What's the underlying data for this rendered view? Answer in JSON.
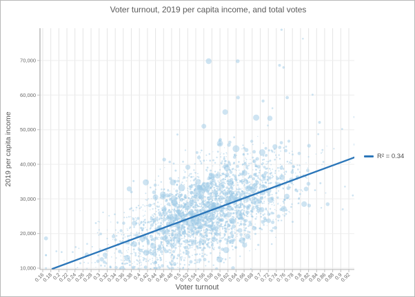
{
  "window": {
    "border_color": "#b7b7b7",
    "background": "#ffffff"
  },
  "chart_data": {
    "type": "scatter",
    "title": "Voter turnout, 2019 per capita income, and total votes",
    "xlabel": "Voter turnout",
    "ylabel": "2019 per capita income",
    "xlim": [
      0.15,
      0.94
    ],
    "ylim": [
      9500,
      79500
    ],
    "grid": true,
    "legend": {
      "label": "R² = 0.34",
      "position": "right-of-plot"
    },
    "x_ticks": [
      "0.16",
      "0.18",
      "0.2",
      "0.22",
      "0.24",
      "0.26",
      "0.28",
      "0.3",
      "0.32",
      "0.34",
      "0.36",
      "0.38",
      "0.4",
      "0.42",
      "0.44",
      "0.46",
      "0.48",
      "0.5",
      "0.52",
      "0.54",
      "0.56",
      "0.58",
      "0.6",
      "0.62",
      "0.64",
      "0.66",
      "0.68",
      "0.7",
      "0.72",
      "0.74",
      "0.76",
      "0.78",
      "0.8",
      "0.82",
      "0.84",
      "0.86",
      "0.88",
      "0.9",
      "0.92"
    ],
    "y_ticks": [
      "10,000",
      "20,000",
      "30,000",
      "40,000",
      "50,000",
      "60,000",
      "70,000"
    ],
    "trendline": {
      "x1": 0.184,
      "y1": 9800,
      "x2": 0.934,
      "y2": 42000,
      "r_squared": 0.34,
      "color": "#2b76b9",
      "width": 2.4
    },
    "points_style": {
      "fill": "#9ec9e6",
      "opacity": 0.5
    },
    "axis_style": {
      "y_axis_color": "#949494",
      "x_axis_color": "#b3b3b3",
      "grid_color_vertical": "#e4e4e4",
      "grid_color_horizontal": "#ededed",
      "tick_color": "#bdbdbd",
      "tick_label_color": "#666666"
    },
    "notable_points": [
      [
        0.753,
        78900,
        1.6
      ],
      [
        0.806,
        76300,
        1.3
      ],
      [
        0.572,
        69800,
        4.2
      ],
      [
        0.644,
        69800,
        2.8
      ],
      [
        0.748,
        68600,
        2.0
      ],
      [
        0.758,
        68000,
        1.8
      ],
      [
        0.645,
        59300,
        2.6
      ],
      [
        0.707,
        58300,
        2.2
      ],
      [
        0.767,
        59300,
        2.4
      ],
      [
        0.83,
        60100,
        1.5
      ],
      [
        0.613,
        55100,
        4.0
      ],
      [
        0.69,
        53500,
        4.5
      ],
      [
        0.724,
        53300,
        3.8
      ],
      [
        0.56,
        51000,
        3.5
      ],
      [
        0.6,
        46000,
        4.5
      ],
      [
        0.64,
        44500,
        5.0
      ],
      [
        0.58,
        36500,
        5.0
      ],
      [
        0.548,
        32100,
        8.0
      ],
      [
        0.563,
        33600,
        6.0
      ],
      [
        0.505,
        33200,
        5.0
      ],
      [
        0.416,
        34800,
        4.5
      ],
      [
        0.44,
        30500,
        4.0
      ],
      [
        0.52,
        28000,
        5.5
      ],
      [
        0.63,
        30000,
        5.5
      ],
      [
        0.67,
        33000,
        4.5
      ],
      [
        0.93,
        31000,
        1.4
      ],
      [
        0.905,
        27000,
        1.4
      ]
    ],
    "cloud_distribution": {
      "seed": 42,
      "count": 3000,
      "x_mean": 0.565,
      "x_std": 0.103,
      "wide_tail_fraction": 0.08,
      "x_wide_std": 0.17,
      "x_min": 0.168,
      "x_max": 0.935,
      "trend_slope": 43000,
      "trend_intercept": 1800,
      "noise_std": 6400,
      "upper_skew_fraction": 0.05,
      "upper_skew_max": 11000,
      "y_floor": 9700,
      "y_ceiling": 79000,
      "compress_above": 58000,
      "compress_factor": 0.35,
      "radius_small": [
        0.6,
        1.5
      ],
      "radius_mid": [
        1.5,
        2.8
      ],
      "radius_large": [
        2.8,
        4.6
      ],
      "small_fraction": 0.78,
      "mid_fraction": 0.18
    }
  }
}
